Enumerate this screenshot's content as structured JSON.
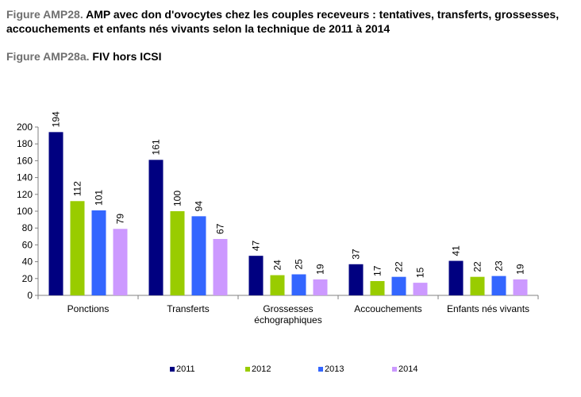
{
  "header": {
    "title_prefix": "Figure AMP28.",
    "title_text": "AMP avec don d'ovocytes chez les couples receveurs : tentatives, transferts, grossesses, accouchements et enfants nés vivants selon la technique de 2011 à 2014",
    "subtitle_prefix": "Figure AMP28a.",
    "subtitle_text": "FIV hors ICSI"
  },
  "chart_data": {
    "type": "bar",
    "categories": [
      [
        "Ponctions"
      ],
      [
        "Transferts"
      ],
      [
        "Grossesses",
        "échographiques"
      ],
      [
        "Accouchements"
      ],
      [
        "Enfants nés vivants"
      ]
    ],
    "series": [
      {
        "name": "2011",
        "color": "#000080",
        "values": [
          194,
          161,
          47,
          37,
          41
        ]
      },
      {
        "name": "2012",
        "color": "#99cc00",
        "values": [
          112,
          100,
          24,
          17,
          22
        ]
      },
      {
        "name": "2013",
        "color": "#3366ff",
        "values": [
          101,
          94,
          25,
          22,
          23
        ]
      },
      {
        "name": "2014",
        "color": "#cc99ff",
        "values": [
          79,
          67,
          19,
          15,
          19
        ]
      }
    ],
    "ylim": [
      0,
      200
    ],
    "yticks": [
      0,
      20,
      40,
      60,
      80,
      100,
      120,
      140,
      160,
      180,
      200
    ],
    "data_labels": true,
    "grid": false,
    "legend_position": "bottom"
  }
}
